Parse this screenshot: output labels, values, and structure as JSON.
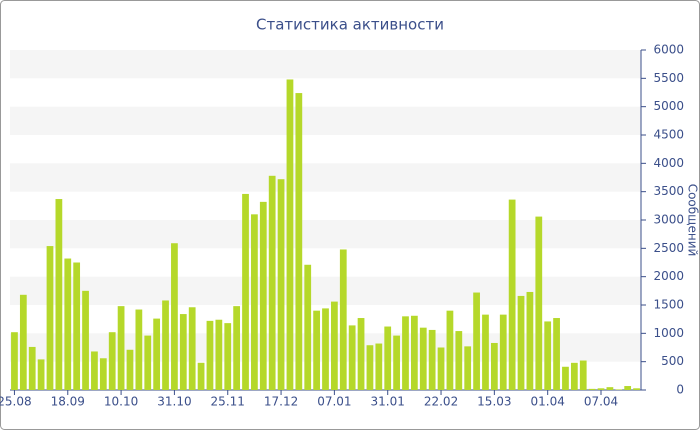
{
  "chart_data": {
    "type": "bar",
    "title": "Статистика активности",
    "y_label": "Сообщений",
    "categories": [
      "25.08",
      null,
      null,
      null,
      null,
      null,
      "18.09",
      null,
      null,
      null,
      null,
      null,
      "10.10",
      null,
      null,
      null,
      null,
      null,
      "31.10",
      null,
      null,
      null,
      null,
      null,
      "25.11",
      null,
      null,
      null,
      null,
      null,
      "17.12",
      null,
      null,
      null,
      null,
      null,
      "07.01",
      null,
      null,
      null,
      null,
      null,
      "31.01",
      null,
      null,
      null,
      null,
      null,
      "22.02",
      null,
      null,
      null,
      null,
      null,
      "15.03",
      null,
      null,
      null,
      null,
      null,
      "01.04",
      null,
      null,
      null,
      null,
      null,
      "07.04",
      null,
      null,
      null,
      null
    ],
    "values": [
      1020,
      1680,
      760,
      540,
      2540,
      3370,
      2320,
      2250,
      1750,
      680,
      560,
      1020,
      1480,
      710,
      1420,
      960,
      1260,
      1580,
      2590,
      1340,
      1460,
      480,
      1220,
      1240,
      1180,
      1480,
      3460,
      3100,
      3320,
      3780,
      3720,
      5480,
      5240,
      2210,
      1400,
      1440,
      1560,
      2480,
      1140,
      1270,
      790,
      820,
      1120,
      960,
      1300,
      1310,
      1100,
      1060,
      750,
      1400,
      1040,
      770,
      1720,
      1330,
      830,
      1330,
      3360,
      1660,
      1730,
      3060,
      1210,
      1270,
      410,
      480,
      520,
      20,
      30,
      50,
      10,
      70,
      30
    ],
    "color": "#b5d82a",
    "ylim": [
      0,
      6000
    ],
    "yticks": [
      0,
      500,
      1000,
      1500,
      2000,
      2500,
      3000,
      3500,
      4000,
      4500,
      5000,
      5500,
      6000
    ],
    "grid": true
  }
}
